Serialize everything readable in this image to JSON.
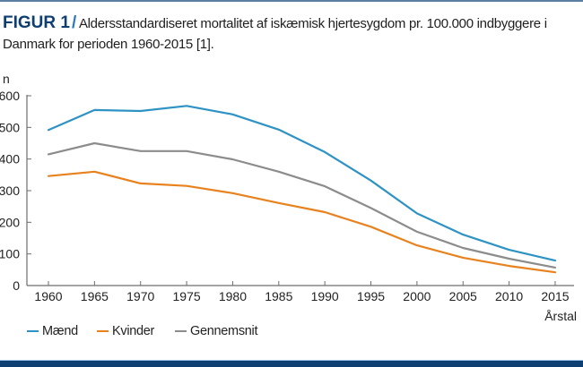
{
  "title": {
    "figure_label": "FIGUR 1",
    "separator": "/",
    "text": "Aldersstandardiseret mortalitet af iskæmisk hjertesygdom pr. 100.000 indbyggere i Danmark for perioden 1960-2015 [1]."
  },
  "colors": {
    "maend": "#2e93c4",
    "kvinder": "#e8821e",
    "gennemsnit": "#8c8c8c",
    "figure_label": "#0f3f70",
    "separator": "#2a78bf",
    "bottom_bar": "#0e3f72"
  },
  "chart_data": {
    "type": "line",
    "title": "Aldersstandardiseret mortalitet af iskæmisk hjertesygdom pr. 100.000 indbyggere i Danmark for perioden 1960-2015 [1].",
    "xlabel": "Årstal",
    "ylabel": "n",
    "x": [
      1960,
      1965,
      1970,
      1975,
      1980,
      1985,
      1990,
      1995,
      2000,
      2005,
      2010,
      2015
    ],
    "x_tick_labels": [
      "1960",
      "1965",
      "1970",
      "1975",
      "1980",
      "1985",
      "1990",
      "1995",
      "2000",
      "2005",
      "2010",
      "2015"
    ],
    "y_ticks": [
      0,
      100,
      200,
      300,
      400,
      500,
      600
    ],
    "y_tick_labels": [
      "0",
      "100",
      "200",
      "300",
      "400",
      "500",
      "600"
    ],
    "ylim": [
      0,
      600
    ],
    "grid": false,
    "legend_position": "bottom-left",
    "series": [
      {
        "name": "Mænd",
        "color": "#2e93c4",
        "values": [
          492,
          555,
          552,
          568,
          541,
          493,
          422,
          332,
          228,
          161,
          113,
          79
        ]
      },
      {
        "name": "Kvinder",
        "color": "#e8821e",
        "values": [
          346,
          360,
          323,
          315,
          292,
          261,
          232,
          186,
          127,
          88,
          62,
          42
        ]
      },
      {
        "name": "Gennemsnit",
        "color": "#8c8c8c",
        "values": [
          415,
          450,
          425,
          425,
          399,
          360,
          314,
          245,
          170,
          119,
          85,
          57
        ]
      }
    ]
  }
}
